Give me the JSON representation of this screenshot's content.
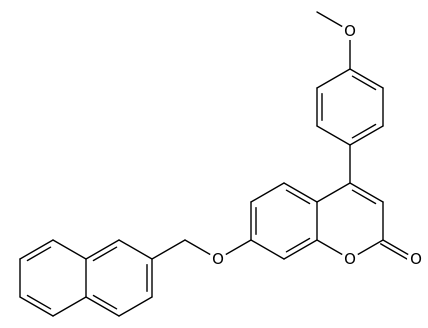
{
  "atoms": [
    {
      "label": "O"
    },
    {
      "label": "O"
    },
    {
      "label": "O"
    },
    {
      "label": "O"
    }
  ]
}
